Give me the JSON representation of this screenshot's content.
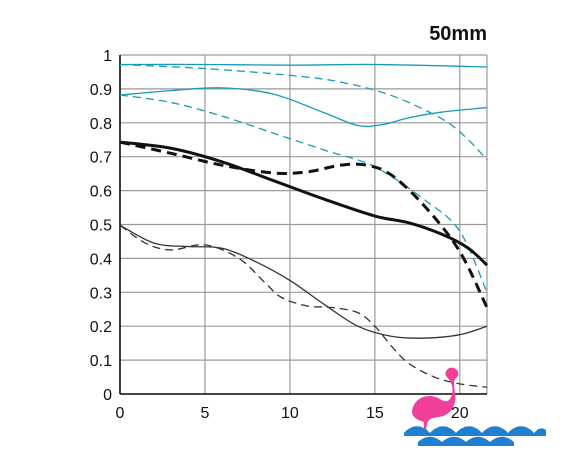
{
  "chart_data": {
    "type": "line",
    "title": "50mm",
    "xlabel": "",
    "ylabel": "",
    "xlim": [
      0,
      21.6
    ],
    "ylim": [
      0,
      1
    ],
    "x_ticks": [
      "0",
      "5",
      "10",
      "15",
      "20"
    ],
    "y_ticks": [
      "0",
      "0.1",
      "0.2",
      "0.3",
      "0.4",
      "0.5",
      "0.6",
      "0.7",
      "0.8",
      "0.9",
      "1"
    ],
    "grid": true,
    "legend": "none",
    "series": [
      {
        "color": "#1a9ab8",
        "style": "solid",
        "weight": "thin",
        "points": [
          [
            0,
            0.972
          ],
          [
            5,
            0.972
          ],
          [
            10,
            0.97
          ],
          [
            15,
            0.972
          ],
          [
            21.6,
            0.965
          ]
        ]
      },
      {
        "color": "#1a9ab8",
        "style": "dashed",
        "weight": "thin",
        "points": [
          [
            0,
            0.972
          ],
          [
            5,
            0.96
          ],
          [
            10,
            0.94
          ],
          [
            13,
            0.92
          ],
          [
            16,
            0.88
          ],
          [
            19,
            0.81
          ],
          [
            20.5,
            0.75
          ],
          [
            21.6,
            0.69
          ]
        ]
      },
      {
        "color": "#1a9ab8",
        "style": "solid",
        "weight": "thin",
        "points": [
          [
            0,
            0.882
          ],
          [
            3,
            0.895
          ],
          [
            6,
            0.903
          ],
          [
            9,
            0.885
          ],
          [
            12,
            0.83
          ],
          [
            14,
            0.792
          ],
          [
            15.5,
            0.795
          ],
          [
            17,
            0.815
          ],
          [
            19,
            0.832
          ],
          [
            21.6,
            0.845
          ]
        ]
      },
      {
        "color": "#1a9ab8",
        "style": "dashed",
        "weight": "thin",
        "points": [
          [
            0,
            0.882
          ],
          [
            3,
            0.86
          ],
          [
            6,
            0.82
          ],
          [
            9,
            0.77
          ],
          [
            12,
            0.72
          ],
          [
            15,
            0.67
          ],
          [
            18,
            0.57
          ],
          [
            20,
            0.48
          ],
          [
            21.6,
            0.3
          ]
        ]
      },
      {
        "color": "#111111",
        "style": "solid",
        "weight": "thick",
        "points": [
          [
            0,
            0.743
          ],
          [
            3,
            0.725
          ],
          [
            6,
            0.685
          ],
          [
            9,
            0.63
          ],
          [
            12,
            0.575
          ],
          [
            15,
            0.525
          ],
          [
            17,
            0.505
          ],
          [
            19,
            0.47
          ],
          [
            20.5,
            0.43
          ],
          [
            21.6,
            0.38
          ]
        ]
      },
      {
        "color": "#111111",
        "style": "dashed",
        "weight": "thick",
        "points": [
          [
            0,
            0.743
          ],
          [
            3,
            0.71
          ],
          [
            6,
            0.675
          ],
          [
            9,
            0.652
          ],
          [
            11,
            0.655
          ],
          [
            13,
            0.675
          ],
          [
            14.5,
            0.675
          ],
          [
            16,
            0.645
          ],
          [
            18,
            0.55
          ],
          [
            20,
            0.42
          ],
          [
            21.6,
            0.255
          ]
        ]
      },
      {
        "color": "#333333",
        "style": "solid",
        "weight": "thin",
        "points": [
          [
            0,
            0.498
          ],
          [
            2,
            0.445
          ],
          [
            4,
            0.435
          ],
          [
            6,
            0.43
          ],
          [
            8,
            0.39
          ],
          [
            10,
            0.335
          ],
          [
            12,
            0.265
          ],
          [
            14,
            0.2
          ],
          [
            16,
            0.17
          ],
          [
            18,
            0.165
          ],
          [
            20,
            0.175
          ],
          [
            21.6,
            0.2
          ]
        ]
      },
      {
        "color": "#333333",
        "style": "dashed",
        "weight": "thin",
        "points": [
          [
            0,
            0.498
          ],
          [
            1.5,
            0.445
          ],
          [
            3,
            0.425
          ],
          [
            5,
            0.44
          ],
          [
            7,
            0.4
          ],
          [
            8.5,
            0.33
          ],
          [
            9.5,
            0.285
          ],
          [
            11,
            0.26
          ],
          [
            12.5,
            0.255
          ],
          [
            14,
            0.24
          ],
          [
            15,
            0.2
          ],
          [
            16,
            0.14
          ],
          [
            17,
            0.09
          ],
          [
            18.5,
            0.05
          ],
          [
            20,
            0.03
          ],
          [
            21.6,
            0.02
          ]
        ]
      }
    ]
  },
  "watermark": {
    "name": "flamingo-waves-logo",
    "bird_color": "#f0409a",
    "wave_color": "#1f7fd0"
  }
}
